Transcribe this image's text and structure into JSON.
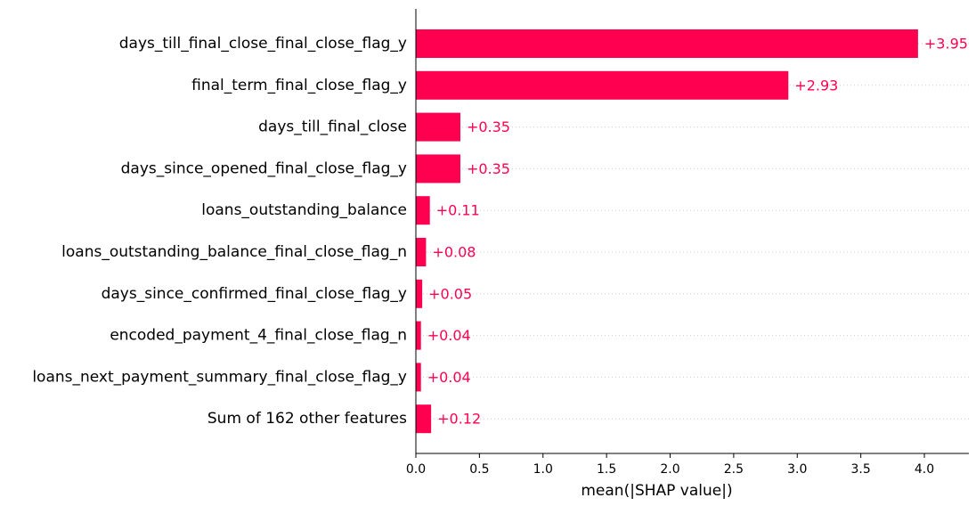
{
  "chart_data": {
    "type": "bar",
    "orientation": "horizontal",
    "categories": [
      "days_till_final_close_final_close_flag_y",
      "final_term_final_close_flag_y",
      "days_till_final_close",
      "days_since_opened_final_close_flag_y",
      "loans_outstanding_balance",
      "loans_outstanding_balance_final_close_flag_n",
      "days_since_confirmed_final_close_flag_y",
      "encoded_payment_4_final_close_flag_n",
      "loans_next_payment_summary_final_close_flag_y",
      "Sum of 162 other features"
    ],
    "values": [
      3.95,
      2.93,
      0.35,
      0.35,
      0.11,
      0.08,
      0.05,
      0.04,
      0.04,
      0.12
    ],
    "value_labels": [
      "+3.95",
      "+2.93",
      "+0.35",
      "+0.35",
      "+0.11",
      "+0.08",
      "+0.05",
      "+0.04",
      "+0.04",
      "+0.12"
    ],
    "title": "",
    "xlabel": "mean(|SHAP value|)",
    "ylabel": "",
    "xlim": [
      0,
      4.35
    ],
    "xticks": [
      0.0,
      0.5,
      1.0,
      1.5,
      2.0,
      2.5,
      3.0,
      3.5,
      4.0
    ],
    "xtick_labels": [
      "0.0",
      "0.5",
      "1.0",
      "1.5",
      "2.0",
      "2.5",
      "3.0",
      "3.5",
      "4.0"
    ],
    "grid": "horizontal dotted row lines",
    "legend": "none",
    "colors": {
      "bar": "#ff0051",
      "value_text": "#ff0051",
      "axis": "#000000",
      "gridline": "#cccccc"
    }
  }
}
